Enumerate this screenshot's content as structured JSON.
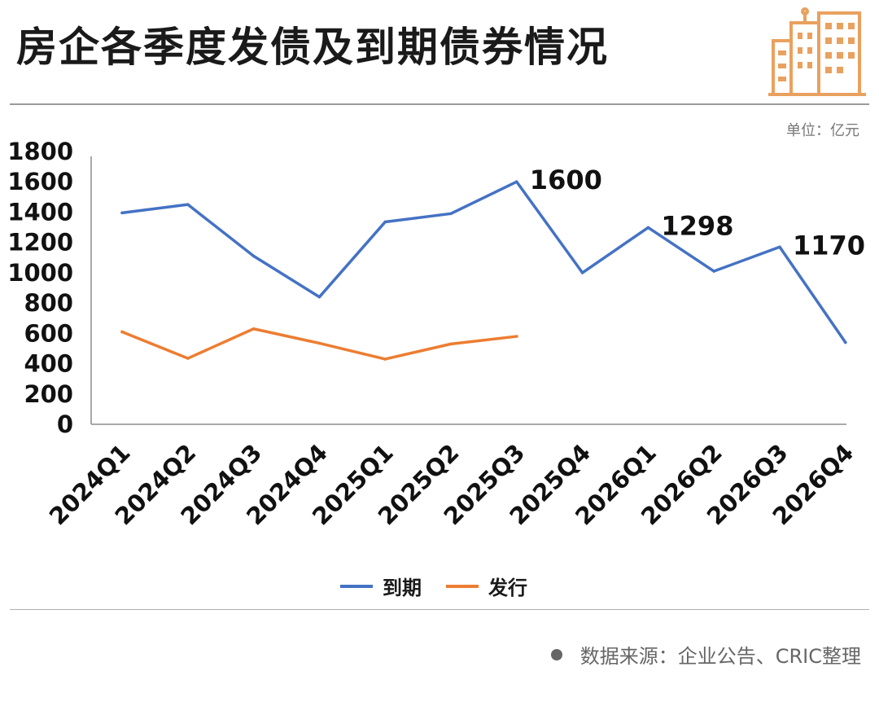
{
  "header": {
    "title": "房企各季度发债及到期债券情况",
    "unit": "单位：亿元"
  },
  "footer": {
    "source": "数据来源：企业公告、CRIC整理"
  },
  "colors": {
    "due": "#4472c4",
    "issued": "#ed7d31",
    "logo": "#e9a15f"
  },
  "icons": [
    "building-logo-icon"
  ],
  "chart_data": {
    "type": "line",
    "categories": [
      "2024Q1",
      "2024Q2",
      "2024Q3",
      "2024Q4",
      "2025Q1",
      "2025Q2",
      "2025Q3",
      "2025Q4",
      "2026Q1",
      "2026Q2",
      "2026Q3",
      "2026Q4"
    ],
    "ylim": [
      0,
      1800
    ],
    "yticks": [
      0,
      200,
      400,
      600,
      800,
      1000,
      1200,
      1400,
      1600,
      1800
    ],
    "grid": false,
    "legend": "bottom",
    "series": [
      {
        "name": "到期",
        "values": [
          1395,
          1450,
          1110,
          840,
          1335,
          1390,
          1600,
          1000,
          1298,
          1010,
          1170,
          540
        ],
        "labels": [
          null,
          null,
          null,
          null,
          null,
          null,
          "1600",
          null,
          "1298",
          null,
          "1170",
          null
        ]
      },
      {
        "name": "发行",
        "values": [
          610,
          435,
          630,
          535,
          430,
          530,
          580,
          null,
          null,
          null,
          null,
          null
        ],
        "labels": [
          null,
          null,
          null,
          null,
          null,
          null,
          null,
          null,
          null,
          null,
          null,
          null
        ]
      }
    ]
  }
}
